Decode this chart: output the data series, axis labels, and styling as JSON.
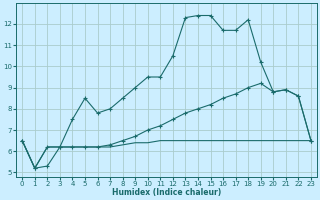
{
  "xlabel": "Humidex (Indice chaleur)",
  "bg_color": "#cceeff",
  "grid_color": "#aacccc",
  "line_color": "#1a6b6b",
  "xlim": [
    -0.5,
    23.5
  ],
  "ylim": [
    4.8,
    13.0
  ],
  "yticks": [
    5,
    6,
    7,
    8,
    9,
    10,
    11,
    12
  ],
  "xticks": [
    0,
    1,
    2,
    3,
    4,
    5,
    6,
    7,
    8,
    9,
    10,
    11,
    12,
    13,
    14,
    15,
    16,
    17,
    18,
    19,
    20,
    21,
    22,
    23
  ],
  "s1_x": [
    0,
    1,
    2,
    3,
    4,
    5,
    6,
    7,
    8,
    9,
    10,
    11,
    12,
    13,
    14,
    15,
    16,
    17,
    18,
    19,
    20,
    21,
    22,
    23
  ],
  "s1_y": [
    6.5,
    5.2,
    5.3,
    6.2,
    7.5,
    8.5,
    7.8,
    8.0,
    8.5,
    9.0,
    9.5,
    9.5,
    10.5,
    12.3,
    12.4,
    12.4,
    11.7,
    11.7,
    12.2,
    10.2,
    8.8,
    8.9,
    8.6,
    6.5
  ],
  "s2_x": [
    0,
    1,
    2,
    3,
    4,
    5,
    6,
    7,
    8,
    9,
    10,
    11,
    12,
    13,
    14,
    15,
    16,
    17,
    18,
    19,
    20,
    21,
    22,
    23
  ],
  "s2_y": [
    6.5,
    5.2,
    6.2,
    6.2,
    6.2,
    6.2,
    6.2,
    6.3,
    6.5,
    6.7,
    7.0,
    7.2,
    7.5,
    7.8,
    8.0,
    8.2,
    8.5,
    8.7,
    9.0,
    9.2,
    8.8,
    8.9,
    8.6,
    6.5
  ],
  "s3_x": [
    0,
    1,
    2,
    3,
    4,
    5,
    6,
    7,
    8,
    9,
    10,
    11,
    12,
    13,
    14,
    15,
    16,
    17,
    18,
    19,
    20,
    21,
    22,
    23
  ],
  "s3_y": [
    6.5,
    5.2,
    6.2,
    6.2,
    6.2,
    6.2,
    6.2,
    6.2,
    6.3,
    6.4,
    6.4,
    6.5,
    6.5,
    6.5,
    6.5,
    6.5,
    6.5,
    6.5,
    6.5,
    6.5,
    6.5,
    6.5,
    6.5,
    6.5
  ]
}
